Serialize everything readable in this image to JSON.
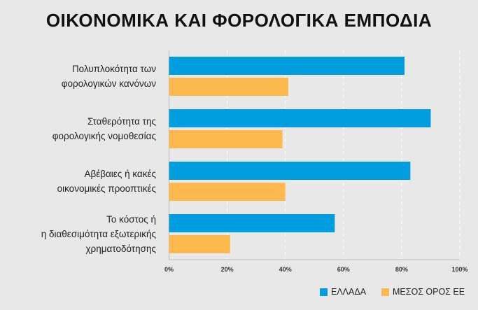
{
  "chart_data": {
    "type": "bar",
    "orientation": "horizontal",
    "title": "ΟΙΚΟΝΟΜΙΚΑ ΚΑΙ ΦΟΡΟΛΟΓΙΚΑ ΕΜΠΟΔΙΑ",
    "categories": [
      [
        "Πολυπλοκότητα των",
        "φορολογικών κανόνων"
      ],
      [
        "Σταθερότητα της",
        "φορολογικής νομοθεσίας"
      ],
      [
        "Αβέβαιες ή κακές",
        "οικονομικές προοπτικές"
      ],
      [
        "Το κόστος ή",
        "η διαθεσιμότητα εξωτερικής",
        "χρηματοδότησης"
      ]
    ],
    "series": [
      {
        "name": "ΕΛΛΑΔΑ",
        "color": "#009ddf",
        "values": [
          81,
          90,
          83,
          57
        ]
      },
      {
        "name": "ΜΕΣΟΣ ΟΡΟΣ ΕΕ",
        "color": "#fdb94d",
        "values": [
          41,
          39,
          40,
          21
        ]
      }
    ],
    "xlim": [
      0,
      100
    ],
    "xticks": [
      "0%",
      "20%",
      "40%",
      "60%",
      "80%",
      "100%"
    ],
    "grid": true,
    "legend": "bottom-right"
  }
}
